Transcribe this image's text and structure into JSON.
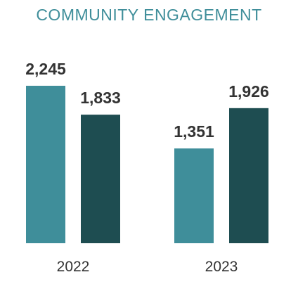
{
  "chart_data": {
    "type": "bar",
    "title": "COMMUNITY ENGAGEMENT",
    "xlabel": "",
    "ylabel": "",
    "categories": [
      "2022",
      "2023"
    ],
    "series": [
      {
        "values": [
          2245,
          1351
        ],
        "color": "#3f8e9a"
      },
      {
        "values": [
          1833,
          1926
        ],
        "color": "#1e4d51"
      }
    ],
    "value_labels": [
      [
        "2,245",
        "1,351"
      ],
      [
        "1,833",
        "1,926"
      ]
    ],
    "ylim": [
      0,
      2245
    ],
    "grid": false,
    "legend": "none"
  }
}
